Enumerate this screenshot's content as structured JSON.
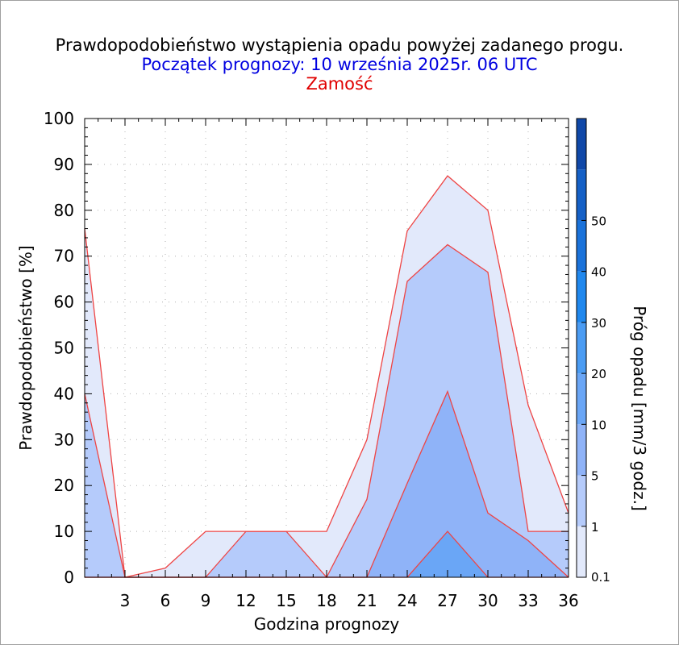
{
  "chart_data": {
    "type": "area",
    "title": "Prawdopodobieństwo wystąpienia opadu powyżej zadanego progu.",
    "subtitle": "Początek prognozy: 10 września 2025r. 06 UTC",
    "location": "Zamość",
    "xlabel": "Godzina prognozy",
    "ylabel": "Prawdopodobieństwo [%]",
    "colorbar_label": "Próg opadu [mm/3 godz.]",
    "xlim": [
      0,
      36
    ],
    "ylim": [
      0,
      100
    ],
    "x_ticks": [
      3,
      6,
      9,
      12,
      15,
      18,
      21,
      24,
      27,
      30,
      33,
      36
    ],
    "y_ticks": [
      0,
      10,
      20,
      30,
      40,
      50,
      60,
      70,
      80,
      90,
      100
    ],
    "grid": true,
    "x": [
      0,
      3,
      6,
      9,
      12,
      15,
      18,
      21,
      24,
      27,
      30,
      33,
      36
    ],
    "series": [
      {
        "threshold": "0.1",
        "values": [
          76,
          0,
          2,
          10,
          10,
          10,
          10,
          30,
          75.5,
          87.5,
          80,
          37.5,
          14
        ],
        "color": "#e2e9fb"
      },
      {
        "threshold": "1",
        "values": [
          40,
          0,
          0,
          0,
          10,
          10,
          0,
          17,
          64.5,
          72.5,
          66.5,
          10,
          10
        ],
        "color": "#b5cbfb"
      },
      {
        "threshold": "5",
        "values": [
          0,
          0,
          0,
          0,
          0,
          0,
          0,
          0,
          20.5,
          40.5,
          14,
          8,
          0
        ],
        "color": "#8fb3f8"
      },
      {
        "threshold": "10",
        "values": [
          0,
          0,
          0,
          0,
          0,
          0,
          0,
          0,
          0,
          10,
          0,
          0,
          0
        ],
        "color": "#6aa6f6"
      }
    ],
    "colorbar": {
      "labels": [
        "0.1",
        "1",
        "5",
        "10",
        "20",
        "30",
        "40",
        "50"
      ],
      "colors": [
        "#e2e9fb",
        "#b5cbfb",
        "#8fb3f8",
        "#6aa6f6",
        "#4b9cf3",
        "#2088ee",
        "#1a72da",
        "#1560c6",
        "#1048a8"
      ]
    },
    "outline_color": "#ee4444"
  }
}
